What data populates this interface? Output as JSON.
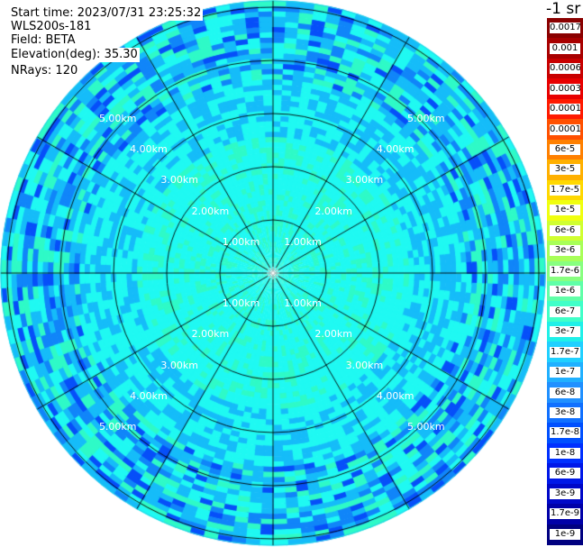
{
  "info": {
    "start_time": "Start time: 2023/07/31 23:25:32",
    "device": "WLS200s-181",
    "field": "Field: BETA",
    "elevation_label": "Elevation(deg):",
    "elevation_value": "35.30",
    "nrays": "NRays: 120"
  },
  "colorbar": {
    "title": "-1 sr",
    "labels": [
      "0.0017",
      "0.001",
      "0.0006",
      "0.0003",
      "0.00017",
      "0.0001",
      "6e-5",
      "3e-5",
      "1.7e-5",
      "1e-5",
      "6e-6",
      "3e-6",
      "1.7e-6",
      "1e-6",
      "6e-7",
      "3e-7",
      "1.7e-7",
      "1e-7",
      "6e-8",
      "3e-8",
      "1.7e-8",
      "1e-8",
      "6e-9",
      "3e-9",
      "1.7e-9",
      "1e-9"
    ],
    "colors": [
      "#8a0000",
      "#a80000",
      "#c80000",
      "#e80000",
      "#ff1a00",
      "#ff5000",
      "#ff8000",
      "#ffb000",
      "#ffd800",
      "#f0ff10",
      "#d0ff30",
      "#a8ff58",
      "#88ff80",
      "#60ffa8",
      "#40ffc8",
      "#20f0e8",
      "#20d0ff",
      "#20b0ff",
      "#2090ff",
      "#1070ff",
      "#0050ff",
      "#0030ff",
      "#0018e8",
      "#0008c8",
      "#0000a8",
      "#000080"
    ]
  },
  "range_rings": [
    "1.00km",
    "2.00km",
    "3.00km",
    "4.00km",
    "5.00km"
  ]
}
